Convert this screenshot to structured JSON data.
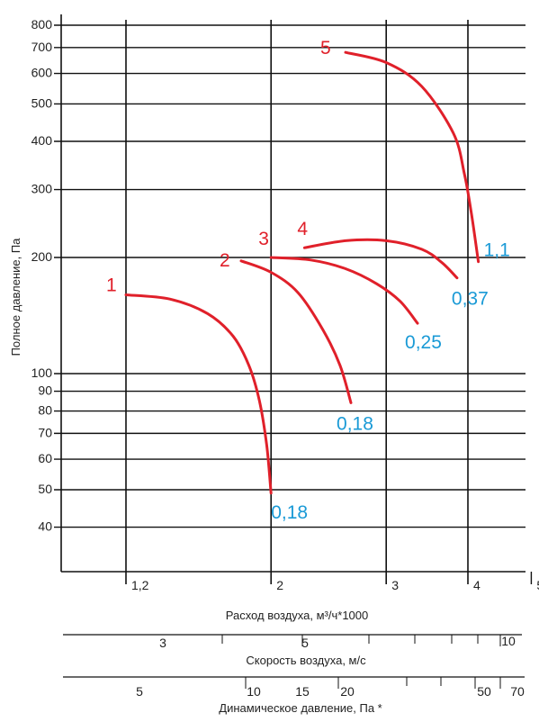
{
  "colors": {
    "curve": "#e0202a",
    "power": "#1a9ad6",
    "grid": "#111111",
    "text": "#222222"
  },
  "chart_data": {
    "type": "line",
    "title": "",
    "xlabel": "Расход воздуха, м³/ч*1000",
    "ylabel": "Полное давление, Па",
    "xscale": "log",
    "yscale": "log",
    "xlim": [
      1.0,
      5.0
    ],
    "ylim": [
      30,
      800
    ],
    "grid": true,
    "y_ticks": [
      "800",
      "700",
      "600",
      "500",
      "400",
      "300",
      "200",
      "100",
      "90",
      "80",
      "70",
      "60",
      "50",
      "40"
    ],
    "y_grid_values": [
      800,
      700,
      600,
      500,
      400,
      300,
      200,
      100,
      90,
      80,
      70,
      60,
      50,
      40
    ],
    "x_ticks": [
      "1,2",
      "2",
      "3",
      "4",
      "5"
    ],
    "x_tick_values": [
      1.2,
      2,
      3,
      4,
      5
    ],
    "x_grid_values": [
      1.2,
      2,
      3,
      4
    ],
    "series": [
      {
        "name": "1",
        "power": "0,18",
        "x": [
          1.2,
          1.4,
          1.6,
          1.75,
          1.85,
          1.92,
          1.97,
          2.0
        ],
        "y": [
          160,
          156,
          143,
          125,
          105,
          85,
          65,
          49
        ]
      },
      {
        "name": "2",
        "power": "0,18",
        "x": [
          1.8,
          2.0,
          2.2,
          2.4,
          2.55,
          2.65
        ],
        "y": [
          196,
          183,
          162,
          130,
          105,
          84
        ]
      },
      {
        "name": "3",
        "power": "0,25",
        "x": [
          2.0,
          2.3,
          2.6,
          2.9,
          3.15,
          3.35
        ],
        "y": [
          200,
          197,
          187,
          171,
          154,
          135
        ]
      },
      {
        "name": "4",
        "power": "0,37",
        "x": [
          2.25,
          2.6,
          3.0,
          3.4,
          3.65,
          3.85
        ],
        "y": [
          212,
          221,
          221,
          210,
          194,
          177
        ]
      },
      {
        "name": "5",
        "power": "1,1",
        "x": [
          2.6,
          3.0,
          3.4,
          3.8,
          3.95,
          4.05,
          4.15
        ],
        "y": [
          680,
          640,
          555,
          420,
          330,
          260,
          195
        ]
      }
    ],
    "secondary_axes": [
      {
        "label": "Скорость воздуха, м/с",
        "ticks": [
          "3",
          "5",
          "10"
        ]
      },
      {
        "label": "Динамическое давление, Па *",
        "ticks": [
          "5",
          "10",
          "15",
          "20",
          "50",
          "70"
        ]
      }
    ]
  }
}
